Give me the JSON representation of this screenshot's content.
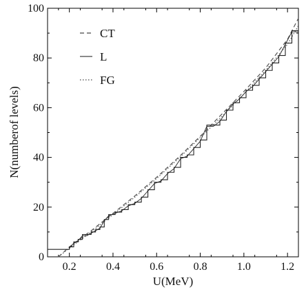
{
  "chart_data": {
    "type": "line",
    "title": "",
    "xlabel": "U(MeV)",
    "ylabel": "N(numberof levels)",
    "xlim": [
      0.1,
      1.25
    ],
    "ylim": [
      0,
      100
    ],
    "x_ticks": [
      {
        "value": 0.2,
        "label": "0.2"
      },
      {
        "value": 0.4,
        "label": "0.4"
      },
      {
        "value": 0.6,
        "label": "0.6"
      },
      {
        "value": 0.8,
        "label": "0.8"
      },
      {
        "value": 1.0,
        "label": "1.0"
      },
      {
        "value": 1.2,
        "label": "1.2"
      }
    ],
    "y_ticks": [
      {
        "value": 0,
        "label": "0"
      },
      {
        "value": 20,
        "label": "20"
      },
      {
        "value": 40,
        "label": "40"
      },
      {
        "value": 60,
        "label": "60"
      },
      {
        "value": 80,
        "label": "80"
      },
      {
        "value": 100,
        "label": "100"
      }
    ],
    "legend": {
      "position": "top-left",
      "entries": [
        {
          "label": "CT",
          "style": "dashed"
        },
        {
          "label": "L",
          "style": "solid"
        },
        {
          "label": "FG",
          "style": "dotted"
        }
      ]
    },
    "series": [
      {
        "name": "CT",
        "style": "dashed",
        "color": "#555555",
        "x": [
          0.15,
          0.2,
          0.3,
          0.4,
          0.5,
          0.6,
          0.7,
          0.8,
          0.9,
          1.0,
          1.1,
          1.2,
          1.25
        ],
        "y": [
          0,
          4,
          10.5,
          17.5,
          24.5,
          32,
          40,
          48.5,
          57.5,
          66.5,
          76,
          87.5,
          96
        ]
      },
      {
        "name": "FG",
        "style": "dotted",
        "color": "#555555",
        "x": [
          0.15,
          0.2,
          0.3,
          0.4,
          0.5,
          0.6,
          0.7,
          0.8,
          0.9,
          1.0,
          1.1,
          1.2,
          1.25
        ],
        "y": [
          0,
          3.5,
          10,
          17,
          24,
          31.5,
          39.5,
          48,
          56.5,
          65.5,
          75,
          85.5,
          93
        ]
      },
      {
        "name": "L",
        "style": "step",
        "color": "#222222",
        "x": [
          0.1,
          0.19,
          0.2,
          0.22,
          0.24,
          0.26,
          0.28,
          0.3,
          0.32,
          0.34,
          0.36,
          0.38,
          0.41,
          0.44,
          0.47,
          0.5,
          0.53,
          0.56,
          0.59,
          0.62,
          0.65,
          0.68,
          0.71,
          0.74,
          0.77,
          0.8,
          0.83,
          0.86,
          0.89,
          0.92,
          0.95,
          0.98,
          1.01,
          1.04,
          1.07,
          1.1,
          1.13,
          1.16,
          1.19,
          1.22,
          1.25
        ],
        "y": [
          3,
          3,
          4,
          6,
          7,
          9,
          9,
          10,
          11,
          12,
          15,
          17,
          18,
          19,
          21,
          22,
          24,
          27,
          30,
          31,
          34,
          36,
          40,
          41,
          44,
          47,
          53,
          53,
          55,
          59,
          62,
          64,
          67,
          69,
          72,
          75,
          78,
          81,
          86,
          91,
          91
        ]
      }
    ]
  }
}
